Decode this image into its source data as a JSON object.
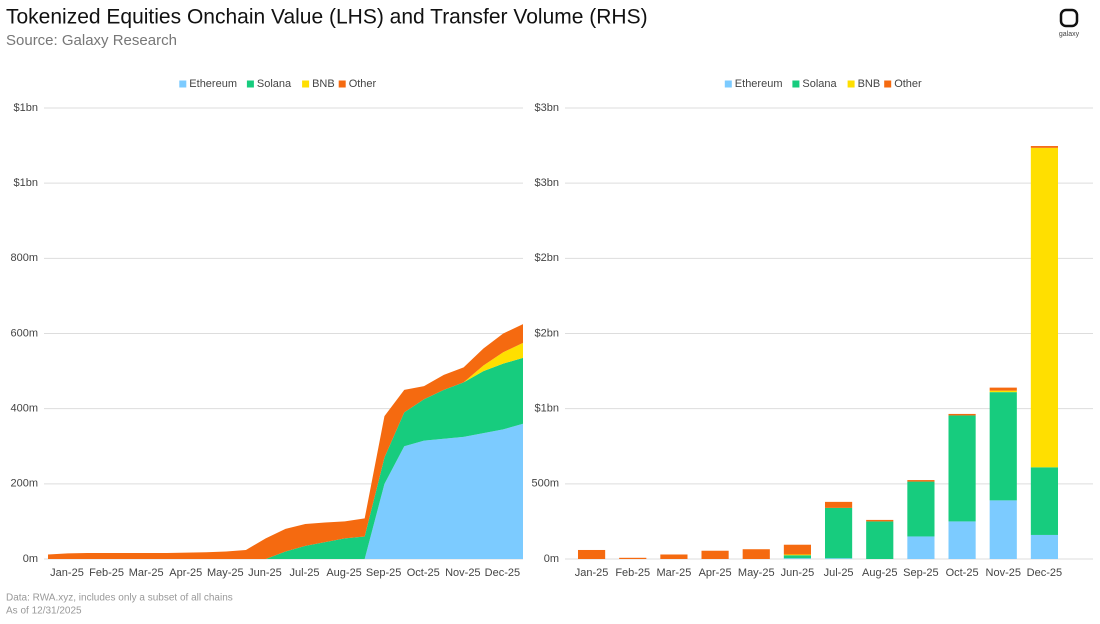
{
  "title": "Tokenized Equities Onchain Value (LHS) and Transfer Volume (RHS)",
  "source": "Source: Galaxy Research",
  "notes": [
    "Data: RWA.xyz, includes only a subset of all chains",
    "As of 12/31/2025"
  ],
  "logo": "galaxy",
  "chart_data": [
    {
      "type": "area",
      "categories": [
        "Jan-25",
        null,
        "Feb-25",
        null,
        "Mar-25",
        null,
        "Apr-25",
        null,
        "May-25",
        null,
        "Jun-25",
        null,
        "Jul-25",
        null,
        "Aug-25",
        null,
        "Sep-25",
        null,
        "Oct-25",
        null,
        "Nov-25",
        null,
        "Dec-25",
        null,
        null
      ],
      "series": [
        {
          "name": "Ethereum",
          "color": "#7ccbff",
          "values": [
            0,
            0,
            0,
            0,
            0,
            0,
            0,
            0,
            0,
            0,
            0,
            0,
            0,
            0,
            0,
            0,
            0,
            200,
            300,
            315,
            320,
            325,
            335,
            345,
            360
          ]
        },
        {
          "name": "Solana",
          "color": "#17cc7e",
          "values": [
            0,
            0,
            0,
            0,
            0,
            0,
            0,
            0,
            0,
            0,
            0,
            0,
            20,
            35,
            45,
            55,
            60,
            70,
            90,
            110,
            130,
            145,
            165,
            175,
            175
          ]
        },
        {
          "name": "BNB",
          "color": "#ffdf00",
          "values": [
            0,
            0,
            0,
            0,
            0,
            0,
            0,
            0,
            0,
            0,
            0,
            0,
            0,
            0,
            0,
            0,
            0,
            0,
            0,
            0,
            0,
            0,
            15,
            30,
            40
          ]
        },
        {
          "name": "Other",
          "color": "#f56a10",
          "values": [
            12,
            15,
            16,
            16,
            16,
            16,
            16,
            17,
            18,
            20,
            24,
            55,
            60,
            58,
            52,
            45,
            48,
            110,
            60,
            35,
            40,
            40,
            45,
            50,
            50
          ]
        }
      ],
      "ylim": [
        0,
        1200
      ],
      "yticks": [
        {
          "value": 0,
          "label": "0m"
        },
        {
          "value": 200,
          "label": "200m"
        },
        {
          "value": 400,
          "label": "400m"
        },
        {
          "value": 600,
          "label": "600m"
        },
        {
          "value": 800,
          "label": "800m"
        },
        {
          "value": 1000,
          "label": "$1bn"
        },
        {
          "value": 1200,
          "label": "$1bn"
        }
      ],
      "grid": true,
      "legend": "top"
    },
    {
      "type": "stacked_bar",
      "categories": [
        "Jan-25",
        "Feb-25",
        "Mar-25",
        "Apr-25",
        "May-25",
        "Jun-25",
        "Jul-25",
        "Aug-25",
        "Sep-25",
        "Oct-25",
        "Nov-25",
        "Dec-25"
      ],
      "series": [
        {
          "name": "Ethereum",
          "color": "#7ccbff",
          "values": [
            0,
            0,
            0,
            0,
            0,
            5,
            5,
            0,
            150,
            250,
            390,
            160
          ]
        },
        {
          "name": "Solana",
          "color": "#17cc7e",
          "values": [
            0,
            0,
            0,
            0,
            0,
            20,
            335,
            250,
            365,
            705,
            720,
            450
          ]
        },
        {
          "name": "BNB",
          "color": "#ffdf00",
          "values": [
            0,
            0,
            0,
            0,
            0,
            5,
            0,
            0,
            0,
            0,
            10,
            2125
          ]
        },
        {
          "name": "Other",
          "color": "#f56a10",
          "values": [
            60,
            8,
            30,
            55,
            65,
            65,
            40,
            10,
            10,
            10,
            20,
            12
          ]
        }
      ],
      "ylim": [
        0,
        3000
      ],
      "yticks": [
        {
          "value": 0,
          "label": "0m"
        },
        {
          "value": 500,
          "label": "500m"
        },
        {
          "value": 1000,
          "label": "$1bn"
        },
        {
          "value": 1500,
          "label": "$2bn"
        },
        {
          "value": 2000,
          "label": "$2bn"
        },
        {
          "value": 2500,
          "label": "$3bn"
        },
        {
          "value": 3000,
          "label": "$3bn"
        }
      ],
      "grid": true,
      "legend": "top"
    }
  ]
}
